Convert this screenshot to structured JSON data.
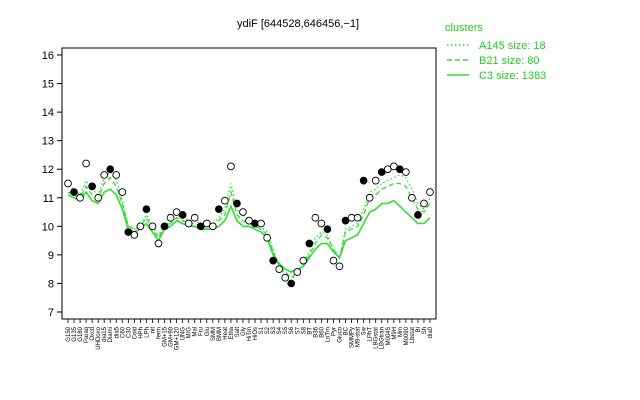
{
  "chart_data": {
    "type": "line",
    "title": "ydiF [644528,646456,−1]",
    "xlabel": "",
    "ylabel": "",
    "ylim": [
      7,
      16
    ],
    "yticks": [
      7,
      8,
      9,
      10,
      11,
      12,
      13,
      14,
      15,
      16
    ],
    "categories": [
      "G150",
      "G135",
      "G180",
      "Paraq",
      "Oxctl",
      "UHDoxo",
      "dia15",
      "Diami",
      "dia5",
      "C60",
      "C30",
      "Cold",
      "HPh",
      "LPh",
      "nit",
      "ferm",
      "GM+15",
      "GM+90",
      "GM+120",
      "UNG",
      "M/G",
      "Mal",
      "Fru",
      "Glu",
      "SMM",
      "BMM",
      "Heat",
      "Etha",
      "Salt",
      "Gly",
      "HiTm",
      "HiOs",
      "S1",
      "S2",
      "S3",
      "S4",
      "S5",
      "S6",
      "S7",
      "S8",
      "BT",
      "B36",
      "B60",
      "LoTm",
      "Pyr",
      "Gluco",
      "BC",
      "SMMPy",
      "M9-stat",
      "Sw",
      "LPhT",
      "LBGstat",
      "LBGtran",
      "M0045",
      "M9H",
      "Mm",
      "M0090",
      "Lbstat",
      "Bl",
      "Sh",
      "dia0"
    ],
    "series": [
      {
        "name": "A145 size: 18",
        "style": "dotted",
        "values": [
          11.4,
          11.3,
          11.1,
          11.6,
          11.3,
          11.1,
          11.7,
          11.9,
          11.6,
          10.9,
          10.0,
          9.9,
          10.1,
          10.4,
          10.0,
          9.7,
          10.0,
          10.2,
          10.4,
          10.3,
          10.2,
          10.2,
          10.1,
          10.1,
          10.1,
          10.3,
          10.6,
          11.5,
          10.6,
          10.4,
          10.2,
          10.1,
          10.0,
          9.8,
          9.2,
          8.6,
          8.3,
          8.1,
          8.4,
          8.7,
          9.1,
          9.6,
          9.8,
          9.7,
          9.2,
          8.9,
          9.9,
          10.0,
          10.1,
          10.6,
          11.2,
          11.3,
          11.5,
          11.6,
          11.7,
          11.8,
          11.7,
          11.3,
          10.8,
          10.6,
          11.0
        ]
      },
      {
        "name": "B21 size: 80",
        "style": "dashed",
        "values": [
          11.2,
          11.1,
          11.0,
          11.4,
          11.1,
          11.0,
          11.5,
          11.7,
          11.4,
          10.8,
          10.0,
          9.9,
          10.0,
          10.3,
          9.9,
          9.6,
          10.0,
          10.1,
          10.3,
          10.2,
          10.1,
          10.1,
          10.0,
          10.0,
          10.0,
          10.2,
          10.4,
          11.2,
          10.4,
          10.2,
          10.1,
          10.0,
          9.9,
          9.7,
          9.1,
          8.6,
          8.4,
          8.2,
          8.4,
          8.6,
          9.0,
          9.4,
          9.7,
          9.6,
          9.2,
          8.9,
          9.8,
          9.9,
          10.0,
          10.4,
          11.0,
          11.1,
          11.3,
          11.4,
          11.5,
          11.5,
          11.4,
          11.0,
          10.6,
          10.5,
          10.8
        ]
      },
      {
        "name": "C3 size: 1383",
        "style": "solid",
        "values": [
          11.1,
          11.0,
          10.9,
          11.2,
          10.9,
          10.8,
          11.2,
          11.3,
          11.1,
          10.6,
          9.9,
          9.8,
          9.9,
          10.1,
          9.8,
          9.5,
          9.9,
          10.0,
          10.2,
          10.1,
          10.0,
          10.0,
          9.9,
          9.9,
          9.9,
          10.0,
          10.2,
          10.7,
          10.2,
          10.0,
          10.0,
          9.9,
          9.8,
          9.6,
          9.0,
          8.7,
          8.5,
          8.4,
          8.5,
          8.6,
          8.9,
          9.2,
          9.4,
          9.4,
          9.1,
          8.9,
          9.5,
          9.6,
          9.7,
          10.1,
          10.5,
          10.6,
          10.8,
          10.8,
          10.9,
          10.7,
          10.5,
          10.3,
          10.1,
          10.1,
          10.3
        ]
      }
    ],
    "points": [
      11.5,
      11.2,
      11.0,
      12.2,
      11.4,
      11.0,
      11.8,
      12.0,
      11.8,
      11.2,
      9.8,
      9.7,
      10.0,
      10.6,
      10.0,
      9.4,
      10.0,
      10.3,
      10.5,
      10.4,
      10.1,
      10.3,
      10.0,
      10.1,
      10.0,
      10.6,
      10.9,
      12.1,
      10.8,
      10.5,
      10.2,
      10.1,
      10.1,
      9.6,
      8.8,
      8.5,
      8.2,
      8.0,
      8.4,
      8.8,
      9.4,
      10.3,
      10.1,
      9.9,
      8.8,
      8.6,
      10.2,
      10.3,
      10.3,
      11.6,
      11.0,
      11.6,
      11.9,
      12.0,
      12.1,
      12.0,
      11.9,
      11.0,
      10.4,
      10.8,
      11.2
    ],
    "legend": {
      "title": "clusters",
      "position": "top-right"
    },
    "colors": {
      "series": "#33dd33",
      "points": "#000000",
      "legend_text": "#22cc22"
    },
    "grid": false
  }
}
